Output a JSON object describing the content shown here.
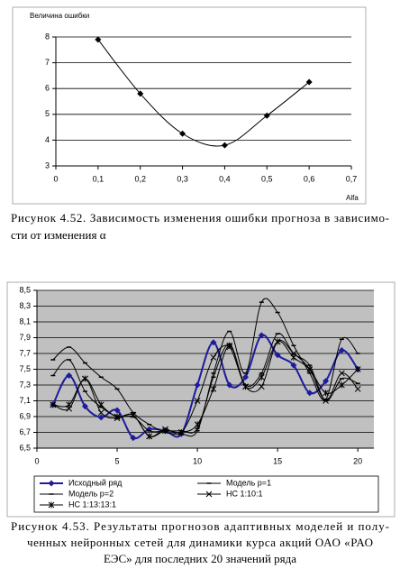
{
  "chart_data": [
    {
      "type": "line",
      "y_title": "Величина ошибки",
      "x_title": "Alfa",
      "x": [
        0.1,
        0.2,
        0.3,
        0.4,
        0.5,
        0.6
      ],
      "series": [
        {
          "name": null,
          "color": "#000000",
          "marker": "diamond",
          "values": [
            7.9,
            5.8,
            4.25,
            3.8,
            4.95,
            6.25
          ]
        }
      ],
      "xlim": [
        0,
        0.7
      ],
      "xticks": [
        0,
        {
          "value": 0.1,
          "label": "0,1"
        },
        {
          "value": 0.2,
          "label": "0,2"
        },
        {
          "value": 0.3,
          "label": "0,3"
        },
        {
          "value": 0.4,
          "label": "0,4"
        },
        {
          "value": 0.5,
          "label": "0,5"
        },
        {
          "value": 0.6,
          "label": "0,6"
        },
        {
          "value": 0.7,
          "label": "0,7"
        }
      ],
      "ylim": [
        3,
        8
      ],
      "yticks": [
        3,
        4,
        5,
        6,
        7,
        8
      ],
      "grid": true,
      "smooth": true,
      "legend": null,
      "caption_lines": [
        "Рисунок 4.52. Зависимость изменения ошибки прогноза в зависимо-",
        "сти от изменения α"
      ]
    },
    {
      "type": "line",
      "x": [
        1,
        2,
        3,
        4,
        5,
        6,
        7,
        8,
        9,
        10,
        11,
        12,
        13,
        14,
        15,
        16,
        17,
        18,
        19,
        20
      ],
      "series": [
        {
          "name": "Исходный ряд",
          "color": "#1c1c9c",
          "marker": "diamond",
          "values": [
            7.05,
            7.42,
            7.03,
            6.89,
            6.98,
            6.63,
            6.74,
            6.72,
            6.68,
            7.3,
            7.84,
            7.3,
            7.4,
            7.93,
            7.68,
            7.55,
            7.2,
            7.35,
            7.74,
            7.5
          ]
        },
        {
          "name": "Модель р=1",
          "color": "#000000",
          "marker": "dash",
          "values": [
            7.42,
            7.62,
            7.22,
            7.02,
            6.9,
            6.9,
            6.72,
            6.72,
            6.72,
            6.75,
            7.4,
            7.82,
            7.3,
            7.45,
            7.95,
            7.7,
            7.55,
            7.1,
            7.38,
            7.32
          ]
        },
        {
          "name": "Модель р=2",
          "color": "#000000",
          "marker": "dash",
          "values": [
            7.62,
            7.78,
            7.58,
            7.4,
            7.25,
            6.95,
            6.8,
            6.7,
            6.68,
            6.72,
            7.45,
            7.98,
            7.45,
            8.35,
            8.22,
            7.8,
            7.45,
            7.12,
            7.88,
            7.7
          ]
        },
        {
          "name": "НС 1:10:1",
          "color": "#000000",
          "marker": "x",
          "values": [
            7.05,
            7.0,
            7.38,
            6.95,
            6.88,
            6.92,
            6.65,
            6.74,
            6.7,
            7.1,
            7.65,
            7.78,
            7.28,
            7.28,
            7.85,
            7.7,
            7.5,
            7.1,
            7.45,
            7.25
          ]
        },
        {
          "name": "НС 1:13:13:1",
          "color": "#000000",
          "marker": "star",
          "values": [
            7.05,
            7.05,
            7.38,
            7.05,
            6.9,
            6.92,
            6.65,
            6.72,
            6.7,
            6.8,
            7.25,
            7.8,
            7.28,
            7.4,
            7.85,
            7.65,
            7.5,
            7.2,
            7.3,
            7.5
          ]
        }
      ],
      "xlim": [
        0,
        21
      ],
      "xticks": [
        0,
        5,
        10,
        15,
        20
      ],
      "ylim": [
        6.5,
        8.5
      ],
      "yticks": [
        {
          "value": 6.5,
          "label": "6,5"
        },
        {
          "value": 6.7,
          "label": "6,7"
        },
        {
          "value": 6.9,
          "label": "6,9"
        },
        {
          "value": 7.1,
          "label": "7,1"
        },
        {
          "value": 7.3,
          "label": "7,3"
        },
        {
          "value": 7.5,
          "label": "7,5"
        },
        {
          "value": 7.7,
          "label": "7,7"
        },
        {
          "value": 7.9,
          "label": "7,9"
        },
        {
          "value": 8.1,
          "label": "8,1"
        },
        {
          "value": 8.3,
          "label": "8,3"
        },
        {
          "value": 8.5,
          "label": "8,5"
        }
      ],
      "grid": true,
      "smooth": true,
      "legend": "bottom",
      "plot_background": "#c0c0c0",
      "caption_lines": [
        "Рисунок 4.53. Результаты прогнозов адаптивных моделей и полу-",
        "ченных нейронных сетей для динамики курса акций ОАО «РАО",
        "ЕЭС» для последних 20 значений ряда"
      ]
    }
  ]
}
